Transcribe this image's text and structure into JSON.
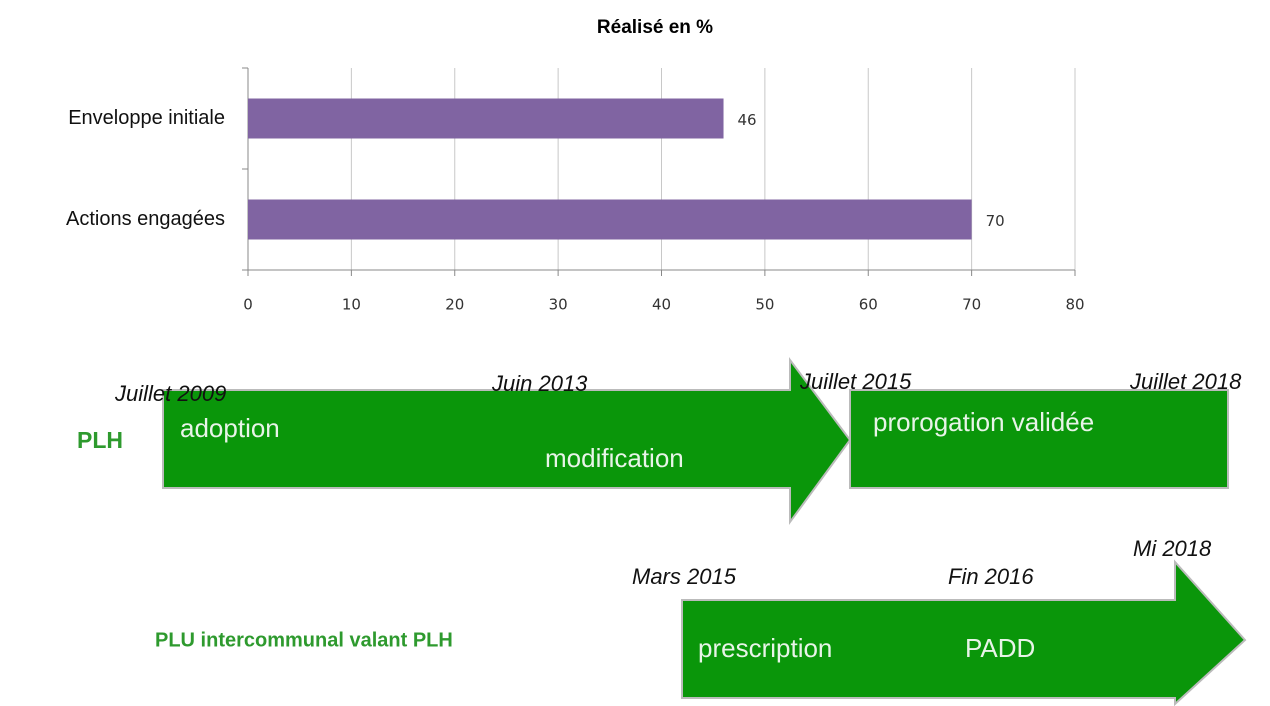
{
  "chart_data": {
    "type": "hbar",
    "title": "Réalisé en %",
    "categories": [
      "Enveloppe initiale",
      "Actions engagées"
    ],
    "values": [
      46,
      70
    ],
    "color": "#8064a2",
    "xlim": [
      0,
      80
    ],
    "xticks": [
      0,
      10,
      20,
      30,
      40,
      50,
      60,
      70,
      80
    ],
    "grid": true
  },
  "timeline": {
    "rows": [
      {
        "label": "PLH",
        "dates": [
          "Juillet 2009",
          "Juin 2013",
          "Juillet 2015",
          "Juillet 2018"
        ],
        "stages": [
          "adoption",
          "modification",
          "prorogation validée"
        ]
      },
      {
        "label": "PLU intercommunal valant PLH",
        "dates": [
          "Mars 2015",
          "Fin 2016",
          "Mi 2018"
        ],
        "stages": [
          "prescription",
          "PADD"
        ]
      }
    ]
  }
}
